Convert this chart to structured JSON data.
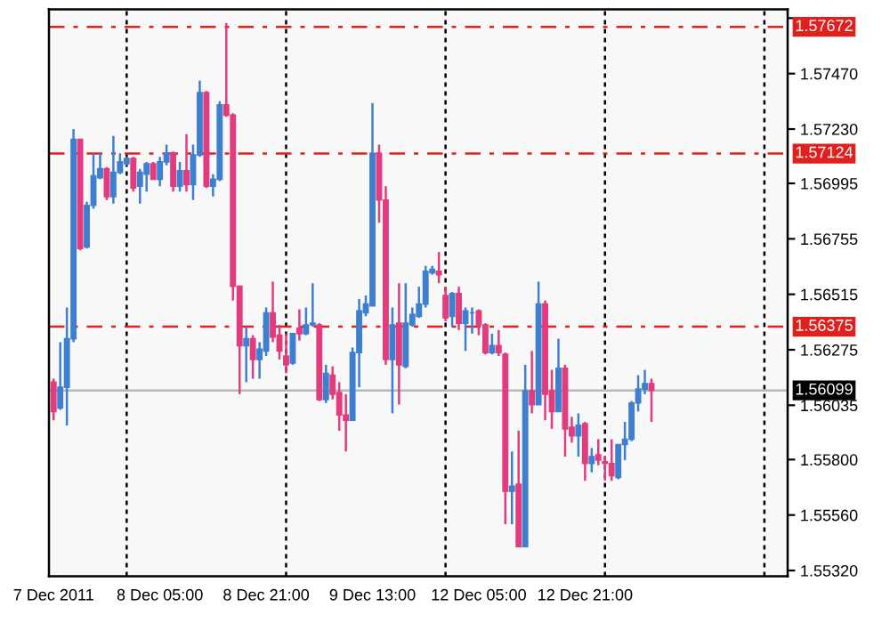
{
  "chart_data": {
    "type": "candlestick",
    "categories": [
      "7 Dec 2011",
      null,
      null,
      null,
      null,
      null,
      null,
      null,
      null,
      null,
      null,
      null,
      null,
      null,
      null,
      null,
      "8 Dec 05:00",
      null,
      null,
      null,
      null,
      null,
      null,
      null,
      null,
      null,
      null,
      null,
      null,
      null,
      null,
      null,
      "8 Dec 21:00",
      null,
      null,
      null,
      null,
      null,
      null,
      null,
      null,
      null,
      null,
      null,
      null,
      null,
      null,
      null,
      "9 Dec 13:00",
      null,
      null,
      null,
      null,
      null,
      null,
      null,
      null,
      null,
      null,
      null,
      null,
      null,
      null,
      null,
      "12 Dec 05:00",
      null,
      null,
      null,
      null,
      null,
      null,
      null,
      null,
      null,
      null,
      null,
      null,
      null,
      null,
      null,
      "12 Dec 21:00",
      null,
      null,
      null,
      null,
      null,
      null,
      null,
      null,
      null,
      null,
      null,
      null,
      null,
      null,
      null,
      null,
      null,
      null,
      null,
      null,
      null,
      null,
      null,
      null,
      null,
      null,
      null,
      null,
      null,
      null
    ],
    "ohlc": [
      [
        1.56135,
        1.5615,
        1.5597,
        1.56008
      ],
      [
        1.56023,
        1.56308,
        1.56015,
        1.56113
      ],
      [
        1.56113,
        1.56458,
        1.55948,
        1.56323
      ],
      [
        1.56323,
        1.5723,
        1.56308,
        1.57185
      ],
      [
        1.57185,
        1.57185,
        1.56705,
        1.56713
      ],
      [
        1.5672,
        1.56915,
        1.56713,
        1.569
      ],
      [
        1.569,
        1.57125,
        1.56885,
        1.57028
      ],
      [
        1.5702,
        1.57125,
        1.57013,
        1.57058
      ],
      [
        1.57058,
        1.57065,
        1.56923,
        1.56938
      ],
      [
        1.56938,
        1.572,
        1.56908,
        1.57043
      ],
      [
        1.57043,
        1.57125,
        1.57035,
        1.57088
      ],
      [
        1.5708,
        1.5711,
        1.57073,
        1.57103
      ],
      [
        1.57103,
        1.5711,
        1.5696,
        1.56975
      ],
      [
        1.56983,
        1.57058,
        1.56908,
        1.57043
      ],
      [
        1.57035,
        1.57088,
        1.5696,
        1.5708
      ],
      [
        1.5708,
        1.57088,
        1.57013,
        1.57013
      ],
      [
        1.57013,
        1.5711,
        1.56983,
        1.57088
      ],
      [
        1.57088,
        1.57163,
        1.57073,
        1.57125
      ],
      [
        1.57125,
        1.57133,
        1.5696,
        1.56983
      ],
      [
        1.56983,
        1.57088,
        1.5696,
        1.5705
      ],
      [
        1.5705,
        1.57208,
        1.5696,
        1.5699
      ],
      [
        1.5699,
        1.57163,
        1.56923,
        1.57118
      ],
      [
        1.57118,
        1.5744,
        1.5711,
        1.57388
      ],
      [
        1.57388,
        1.57395,
        1.56975,
        1.56983
      ],
      [
        1.56983,
        1.57035,
        1.56938,
        1.57013
      ],
      [
        1.57013,
        1.5735,
        1.57005,
        1.57335
      ],
      [
        1.57335,
        1.57688,
        1.57283,
        1.5729
      ],
      [
        1.5729,
        1.57298,
        1.56488,
        1.5655
      ],
      [
        1.5655,
        1.5655,
        1.56083,
        1.56293
      ],
      [
        1.56293,
        1.56375,
        1.56135,
        1.56323
      ],
      [
        1.56323,
        1.56338,
        1.5615,
        1.56233
      ],
      [
        1.56233,
        1.56308,
        1.5615,
        1.56278
      ],
      [
        1.5627,
        1.56458,
        1.56248,
        1.56435
      ],
      [
        1.56435,
        1.5657,
        1.56308,
        1.5633
      ],
      [
        1.56338,
        1.56383,
        1.56233,
        1.5627
      ],
      [
        1.56248,
        1.56345,
        1.56173,
        1.5621
      ],
      [
        1.56218,
        1.56345,
        1.5621,
        1.56345
      ],
      [
        1.56368,
        1.5645,
        1.56315,
        1.56345
      ],
      [
        1.56345,
        1.56458,
        1.56338,
        1.56383
      ],
      [
        1.56383,
        1.56563,
        1.56375,
        1.5639
      ],
      [
        1.56383,
        1.5639,
        1.56053,
        1.5606
      ],
      [
        1.5606,
        1.5621,
        1.56045,
        1.56173
      ],
      [
        1.56165,
        1.56203,
        1.5606,
        1.56083
      ],
      [
        1.5609,
        1.56135,
        1.55925,
        1.55993
      ],
      [
        1.55993,
        1.56083,
        1.55835,
        1.5597
      ],
      [
        1.5597,
        1.56285,
        1.5597,
        1.56263
      ],
      [
        1.56263,
        1.56495,
        1.56113,
        1.56443
      ],
      [
        1.56435,
        1.5651,
        1.5642,
        1.56473
      ],
      [
        1.56465,
        1.57343,
        1.56465,
        1.57125
      ],
      [
        1.57125,
        1.57163,
        1.56825,
        1.56923
      ],
      [
        1.56923,
        1.56983,
        1.5621,
        1.56233
      ],
      [
        1.56233,
        1.56458,
        1.56,
        1.56383
      ],
      [
        1.5639,
        1.56563,
        1.56038,
        1.5621
      ],
      [
        1.56203,
        1.56563,
        1.56195,
        1.5639
      ],
      [
        1.56383,
        1.56458,
        1.56375,
        1.56428
      ],
      [
        1.5642,
        1.56548,
        1.56413,
        1.56473
      ],
      [
        1.56473,
        1.56638,
        1.56458,
        1.56615
      ],
      [
        1.56608,
        1.56638,
        1.566,
        1.56623
      ],
      [
        1.56615,
        1.56698,
        1.56563,
        1.566
      ],
      [
        1.5651,
        1.56548,
        1.56398,
        1.56413
      ],
      [
        1.5642,
        1.56525,
        1.56375,
        1.56518
      ],
      [
        1.56518,
        1.56548,
        1.5636,
        1.5639
      ],
      [
        1.5639,
        1.56458,
        1.5627,
        1.56443
      ],
      [
        1.56435,
        1.56458,
        1.56345,
        1.56435
      ],
      [
        1.56443,
        1.5645,
        1.56338,
        1.56383
      ],
      [
        1.56383,
        1.5639,
        1.56255,
        1.56263
      ],
      [
        1.56263,
        1.56345,
        1.56255,
        1.56293
      ],
      [
        1.56293,
        1.5636,
        1.56248,
        1.56263
      ],
      [
        1.56255,
        1.56263,
        1.5552,
        1.55663
      ],
      [
        1.55663,
        1.55835,
        1.5552,
        1.55685
      ],
      [
        1.55693,
        1.55925,
        1.55423,
        1.55423
      ],
      [
        1.55423,
        1.5621,
        1.55423,
        1.56098
      ],
      [
        1.56098,
        1.5627,
        1.56,
        1.56038
      ],
      [
        1.56038,
        1.5657,
        1.56038,
        1.56473
      ],
      [
        1.56473,
        1.56488,
        1.5597,
        1.56083
      ],
      [
        1.56098,
        1.56188,
        1.55933,
        1.56008
      ],
      [
        1.56008,
        1.56323,
        1.56008,
        1.56195
      ],
      [
        1.56195,
        1.5621,
        1.55813,
        1.55933
      ],
      [
        1.5594,
        1.55985,
        1.55873,
        1.55903
      ],
      [
        1.55903,
        1.56,
        1.55813,
        1.55948
      ],
      [
        1.55955,
        1.55963,
        1.55708,
        1.55783
      ],
      [
        1.55783,
        1.5585,
        1.55745,
        1.55813
      ],
      [
        1.5582,
        1.55888,
        1.55775,
        1.55798
      ],
      [
        1.5579,
        1.55813,
        1.55708,
        1.55783
      ],
      [
        1.55783,
        1.55888,
        1.55708,
        1.5573
      ],
      [
        1.55723,
        1.55865,
        1.55715,
        1.55865
      ],
      [
        1.55865,
        1.55963,
        1.55798,
        1.55888
      ],
      [
        1.55888,
        1.56053,
        1.5588,
        1.56045
      ],
      [
        1.56045,
        1.56165,
        1.56008,
        1.56105
      ],
      [
        1.56105,
        1.56188,
        1.56083,
        1.56128
      ],
      [
        1.56128,
        1.5615,
        1.55963,
        1.56099
      ],
      null,
      null,
      null,
      null,
      null,
      null,
      null,
      null,
      null,
      null,
      null,
      null,
      null,
      null,
      null,
      null,
      null,
      null,
      null,
      null
    ],
    "colors": [
      "#e23b7e",
      "#3f7fd0",
      "#3f7fd0",
      "#3f7fd0",
      "#e23b7e",
      "#3f7fd0",
      "#3f7fd0",
      "#3f7fd0",
      "#e23b7e",
      "#3f7fd0",
      "#3f7fd0",
      "#3f7fd0",
      "#e23b7e",
      "#3f7fd0",
      "#3f7fd0",
      "#e23b7e",
      "#3f7fd0",
      "#3f7fd0",
      "#e23b7e",
      "#3f7fd0",
      "#e23b7e",
      "#3f7fd0",
      "#3f7fd0",
      "#e23b7e",
      "#3f7fd0",
      "#3f7fd0",
      "#e23b7e",
      "#e23b7e",
      "#e23b7e",
      "#3f7fd0",
      "#e23b7e",
      "#3f7fd0",
      "#3f7fd0",
      "#e23b7e",
      "#e23b7e",
      "#e23b7e",
      "#3f7fd0",
      "#e23b7e",
      "#3f7fd0",
      "#3f7fd0",
      "#e23b7e",
      "#3f7fd0",
      "#e23b7e",
      "#e23b7e",
      "#e23b7e",
      "#3f7fd0",
      "#3f7fd0",
      "#3f7fd0",
      "#3f7fd0",
      "#e23b7e",
      "#e23b7e",
      "#3f7fd0",
      "#e23b7e",
      "#3f7fd0",
      "#3f7fd0",
      "#3f7fd0",
      "#3f7fd0",
      "#3f7fd0",
      "#e23b7e",
      "#e23b7e",
      "#3f7fd0",
      "#e23b7e",
      "#3f7fd0",
      "#3f7fd0",
      "#e23b7e",
      "#e23b7e",
      "#3f7fd0",
      "#e23b7e",
      "#e23b7e",
      "#3f7fd0",
      "#e23b7e",
      "#3f7fd0",
      "#e23b7e",
      "#3f7fd0",
      "#e23b7e",
      "#e23b7e",
      "#3f7fd0",
      "#e23b7e",
      "#e23b7e",
      "#3f7fd0",
      "#e23b7e",
      "#3f7fd0",
      "#e23b7e",
      "#e23b7e",
      "#e23b7e",
      "#3f7fd0",
      "#3f7fd0",
      "#3f7fd0",
      "#3f7fd0",
      "#3f7fd0",
      "#e23b7e",
      null,
      null,
      null,
      null,
      null,
      null,
      null,
      null,
      null,
      null,
      null,
      null,
      null,
      null,
      null,
      null,
      null,
      null,
      null,
      null
    ],
    "ylim": [
      1.55295,
      1.57748
    ],
    "yticks": [
      {
        "value": 1.5771,
        "label": null
      },
      {
        "value": 1.5747,
        "label": "1.57470"
      },
      {
        "value": 1.5723,
        "label": "1.57230"
      },
      {
        "value": 1.56995,
        "label": "1.56995"
      },
      {
        "value": 1.56755,
        "label": "1.56755"
      },
      {
        "value": 1.56515,
        "label": "1.56515"
      },
      {
        "value": 1.56275,
        "label": "1.56275"
      },
      {
        "value": 1.56035,
        "label": "1.56035"
      },
      {
        "value": 1.558,
        "label": "1.55800"
      },
      {
        "value": 1.5556,
        "label": "1.55560"
      },
      {
        "value": 1.5532,
        "label": "1.55320"
      }
    ],
    "ref_lines": [
      {
        "axis": "y",
        "value": 1.57672,
        "label": "1.57672",
        "color": "#e0201c",
        "line_style": "dashed"
      },
      {
        "axis": "y",
        "value": 1.57124,
        "label": "1.57124",
        "color": "#e0201c",
        "line_style": "dashed"
      },
      {
        "axis": "y",
        "value": 1.56375,
        "label": "1.56375",
        "color": "#e0201c",
        "line_style": "dashed"
      },
      {
        "axis": "y",
        "value": 1.56099,
        "label": "1.56099",
        "color": "#b8b8b8",
        "line_style": "solid"
      }
    ],
    "grid": false,
    "legend": false
  }
}
